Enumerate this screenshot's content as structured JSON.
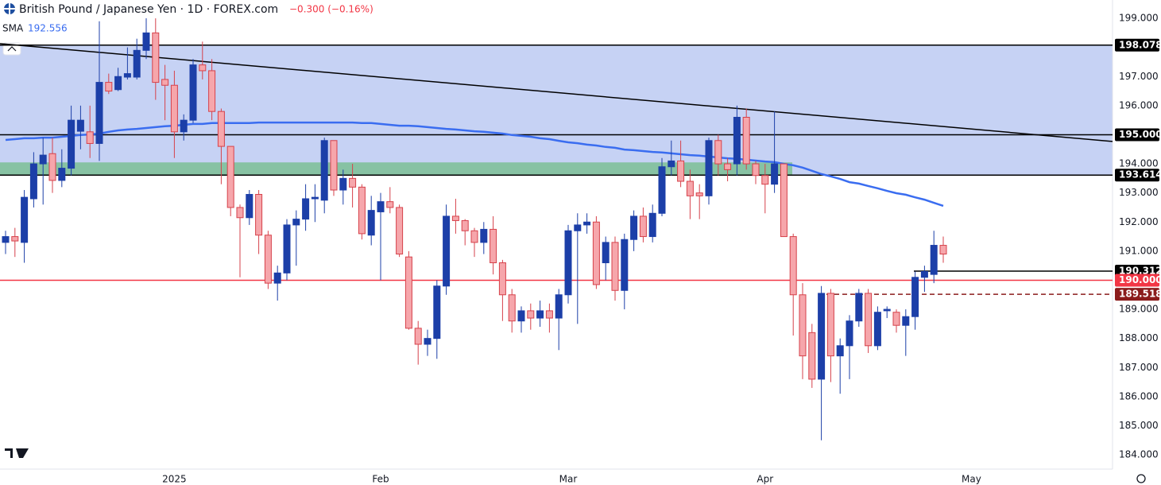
{
  "header": {
    "title": "British Pound / Japanese Yen · 1D · FOREX.com",
    "change": "−0.300 (−0.16%)"
  },
  "chart_data": {
    "type": "candlestick",
    "categories": [
      null,
      null,
      null,
      null,
      null,
      null,
      null,
      null,
      null,
      null,
      null,
      null,
      null,
      null,
      null,
      null,
      null,
      null,
      "2025",
      null,
      null,
      null,
      null,
      null,
      null,
      null,
      null,
      null,
      null,
      null,
      null,
      null,
      null,
      null,
      null,
      null,
      null,
      null,
      null,
      null,
      "Feb",
      null,
      null,
      null,
      null,
      null,
      null,
      null,
      null,
      null,
      null,
      null,
      null,
      null,
      null,
      null,
      null,
      null,
      null,
      null,
      "Mar",
      null,
      null,
      null,
      null,
      null,
      null,
      null,
      null,
      null,
      null,
      null,
      null,
      null,
      null,
      null,
      null,
      null,
      null,
      null,
      null,
      "Apr",
      null,
      null,
      null,
      null,
      null,
      null,
      null,
      null,
      null,
      null,
      null,
      null,
      null,
      null,
      null,
      null,
      null,
      null,
      null,
      null,
      null,
      "May"
    ],
    "open": [
      191.3,
      191.5,
      191.3,
      192.8,
      194.0,
      194.35,
      193.43,
      193.85,
      195.12,
      195.1,
      194.7,
      196.8,
      196.55,
      196.98,
      196.98,
      197.9,
      198.5,
      196.9,
      196.7,
      195.1,
      195.5,
      197.4,
      197.2,
      195.8,
      194.6,
      192.5,
      192.15,
      192.95,
      191.55,
      189.9,
      190.25,
      191.9,
      192.1,
      192.8,
      192.75,
      194.8,
      193.1,
      193.5,
      193.2,
      191.55,
      192.35,
      192.7,
      192.5,
      190.8,
      188.35,
      187.8,
      188.0,
      189.8,
      192.2,
      192.05,
      191.7,
      191.3,
      191.75,
      190.6,
      189.5,
      188.6,
      188.95,
      188.7,
      188.95,
      188.7,
      189.5,
      191.7,
      191.9,
      192.0,
      190.6,
      191.3,
      189.65,
      191.4,
      192.2,
      191.5,
      192.3,
      193.9,
      194.1,
      193.4,
      193.0,
      192.9,
      194.8,
      194.0,
      194.0,
      195.6,
      194.0,
      193.6,
      193.3,
      194.0,
      191.5,
      189.5,
      188.2,
      186.6,
      189.55,
      187.4,
      187.75,
      188.6,
      189.55,
      187.75,
      188.95,
      188.9,
      188.45,
      188.75,
      190.1,
      190.2,
      191.2,
      null,
      null,
      null
    ],
    "high": [
      191.7,
      191.8,
      193.1,
      194.4,
      194.9,
      194.9,
      194.5,
      196.0,
      196.0,
      196.0,
      198.9,
      197.1,
      197.3,
      198.0,
      198.3,
      199.0,
      199.0,
      197.4,
      197.2,
      195.7,
      197.6,
      198.2,
      197.6,
      195.9,
      194.6,
      192.6,
      193.1,
      193.1,
      191.7,
      190.5,
      192.1,
      192.4,
      193.3,
      193.3,
      194.9,
      194.8,
      193.8,
      194.0,
      193.3,
      192.9,
      193.0,
      193.2,
      192.6,
      191.0,
      188.6,
      188.3,
      190.0,
      192.6,
      192.8,
      192.1,
      191.8,
      192.0,
      192.2,
      190.7,
      189.7,
      189.1,
      189.2,
      189.3,
      189.2,
      189.7,
      191.9,
      192.3,
      192.3,
      192.2,
      191.5,
      191.5,
      191.6,
      192.4,
      192.5,
      192.6,
      194.2,
      194.8,
      194.8,
      193.8,
      193.3,
      194.9,
      195.0,
      194.2,
      196.0,
      195.9,
      194.1,
      194.0,
      195.8,
      194.0,
      191.6,
      189.9,
      188.5,
      189.8,
      189.7,
      188.0,
      188.8,
      189.7,
      189.7,
      189.1,
      189.1,
      189.0,
      189.0,
      190.3,
      190.5,
      191.7,
      191.5,
      null,
      null,
      null
    ],
    "low": [
      190.9,
      190.8,
      190.6,
      192.5,
      192.6,
      193.0,
      193.2,
      193.6,
      194.5,
      194.2,
      194.1,
      196.4,
      196.5,
      196.9,
      196.9,
      197.6,
      196.2,
      195.5,
      194.2,
      194.8,
      195.4,
      196.9,
      195.5,
      193.3,
      192.2,
      190.1,
      191.9,
      190.9,
      189.7,
      189.3,
      190.0,
      190.5,
      191.7,
      192.0,
      192.3,
      192.9,
      192.6,
      192.5,
      191.4,
      191.2,
      190.0,
      192.3,
      190.8,
      188.3,
      187.1,
      187.4,
      187.3,
      189.5,
      191.6,
      191.2,
      190.8,
      190.9,
      190.2,
      188.6,
      188.2,
      188.2,
      188.3,
      188.4,
      188.2,
      187.6,
      189.2,
      188.5,
      191.6,
      189.7,
      190.0,
      189.3,
      189.0,
      191.0,
      191.3,
      191.3,
      192.2,
      193.6,
      193.2,
      192.1,
      192.1,
      192.6,
      193.6,
      193.4,
      193.6,
      193.8,
      193.3,
      192.3,
      193.0,
      191.5,
      188.1,
      186.6,
      186.3,
      184.5,
      186.5,
      186.1,
      186.6,
      188.4,
      187.5,
      187.6,
      188.7,
      188.2,
      187.4,
      188.3,
      189.6,
      189.9,
      190.6,
      null,
      null,
      null
    ],
    "close": [
      191.5,
      191.35,
      192.85,
      194.0,
      194.3,
      193.43,
      193.85,
      195.5,
      195.5,
      194.7,
      196.8,
      196.5,
      197.0,
      197.1,
      197.9,
      198.5,
      196.8,
      196.7,
      195.1,
      195.5,
      197.4,
      197.2,
      195.8,
      194.6,
      192.5,
      192.15,
      192.95,
      191.55,
      189.9,
      190.25,
      191.9,
      192.1,
      192.8,
      192.85,
      194.8,
      193.1,
      193.5,
      193.2,
      191.6,
      192.4,
      192.7,
      192.5,
      190.9,
      188.35,
      187.8,
      188.0,
      189.8,
      192.2,
      192.05,
      191.7,
      191.3,
      191.75,
      190.6,
      189.5,
      188.6,
      188.95,
      188.7,
      188.95,
      188.7,
      189.5,
      191.7,
      191.9,
      192.0,
      189.85,
      191.3,
      189.65,
      191.4,
      192.2,
      191.5,
      192.3,
      193.9,
      194.1,
      193.4,
      192.9,
      192.9,
      194.8,
      194.0,
      193.8,
      195.6,
      194.0,
      193.6,
      193.3,
      194.0,
      191.5,
      189.5,
      187.4,
      186.6,
      189.55,
      187.4,
      187.75,
      188.6,
      189.55,
      187.75,
      188.9,
      189.0,
      188.45,
      188.75,
      190.1,
      190.3,
      191.2,
      190.9,
      null,
      null,
      null
    ],
    "up_color": "#1c3fa8",
    "down_color": "#f6a6ab",
    "down_border": "#d6424b",
    "sma": {
      "name": "SMA",
      "color": "#3a6df0",
      "values": [
        194.82,
        194.85,
        194.88,
        194.88,
        194.9,
        194.9,
        194.93,
        194.96,
        194.99,
        195.01,
        195.04,
        195.1,
        195.15,
        195.18,
        195.2,
        195.23,
        195.26,
        195.29,
        195.31,
        195.34,
        195.37,
        195.37,
        195.4,
        195.4,
        195.4,
        195.4,
        195.4,
        195.42,
        195.42,
        195.42,
        195.42,
        195.42,
        195.42,
        195.42,
        195.42,
        195.42,
        195.42,
        195.42,
        195.4,
        195.4,
        195.37,
        195.34,
        195.31,
        195.31,
        195.29,
        195.26,
        195.23,
        195.2,
        195.18,
        195.15,
        195.12,
        195.1,
        195.07,
        195.04,
        194.99,
        194.96,
        194.93,
        194.88,
        194.85,
        194.79,
        194.74,
        194.71,
        194.66,
        194.63,
        194.58,
        194.55,
        194.49,
        194.47,
        194.44,
        194.41,
        194.39,
        194.36,
        194.33,
        194.3,
        194.28,
        194.25,
        194.22,
        194.19,
        194.17,
        194.14,
        194.11,
        194.08,
        194.06,
        194.0,
        193.95,
        193.87,
        193.76,
        193.65,
        193.57,
        193.48,
        193.37,
        193.32,
        193.24,
        193.16,
        193.07,
        192.99,
        192.94,
        192.85,
        192.77,
        192.66,
        192.556,
        null,
        null,
        null
      ]
    },
    "ylim": [
      183.51,
      199.63
    ],
    "yticks": [
      {
        "value": 184,
        "label": "184.000"
      },
      {
        "value": 185,
        "label": "185.000"
      },
      {
        "value": 186,
        "label": "186.000"
      },
      {
        "value": 187,
        "label": "187.000"
      },
      {
        "value": 188,
        "label": "188.000"
      },
      {
        "value": 189,
        "label": "189.000"
      },
      {
        "value": 190,
        "label": "190.000"
      },
      {
        "value": 191,
        "label": "191.000"
      },
      {
        "value": 192,
        "label": "192.000"
      },
      {
        "value": 193,
        "label": "193.000"
      },
      {
        "value": 194,
        "label": "194.000"
      },
      {
        "value": 195,
        "label": "195.000"
      },
      {
        "value": 196,
        "label": "196.000"
      },
      {
        "value": 197,
        "label": "197.000"
      },
      {
        "value": 198,
        "label": "198.000"
      },
      {
        "value": 199,
        "label": "199.000"
      }
    ],
    "zones": [
      {
        "range": [
          193.614,
          198.078
        ],
        "color": "#c0cdf3"
      },
      {
        "range": [
          193.6,
          194.05
        ],
        "color": "#80c09a"
      }
    ],
    "trendline": {
      "values": [
        198.13,
        194.77
      ],
      "color": "#000000"
    },
    "levels": [
      {
        "value": 198.078,
        "label": "198.078",
        "color": "#000000",
        "style": "solid"
      },
      {
        "value": 195.0,
        "label": "195.000",
        "color": "#000000",
        "style": "solid"
      },
      {
        "value": 193.614,
        "label": "193.614",
        "color": "#000000",
        "style": "solid"
      },
      {
        "value": 190.312,
        "label": "190.312",
        "color": "#000000",
        "style": "solid"
      },
      {
        "value": 190.0,
        "label": "190.000",
        "color": "#f23645",
        "style": "solid"
      },
      {
        "value": 189.518,
        "label": "189.518",
        "color": "#8b1c1c",
        "style": "dashed"
      }
    ]
  }
}
